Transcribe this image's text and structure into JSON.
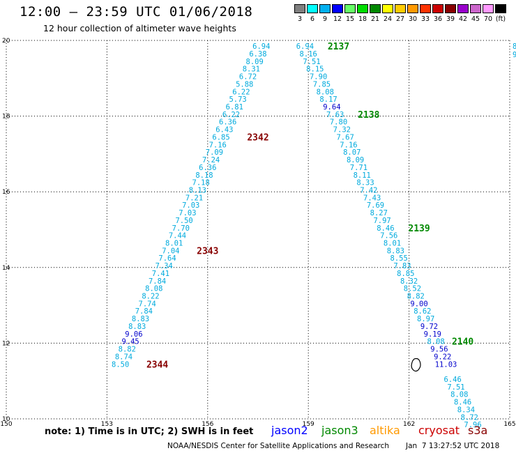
{
  "title": "12:00 – 23:59 UTC 01/06/2018",
  "subtitle": "12 hour collection of altimeter wave heights",
  "colorbar": {
    "unit": "(ft)",
    "swatches": [
      {
        "label": "3",
        "color": "#7f7f7f"
      },
      {
        "label": "6",
        "color": "#00ffff"
      },
      {
        "label": "9",
        "color": "#00b0f0"
      },
      {
        "label": "12",
        "color": "#0000ff"
      },
      {
        "label": "15",
        "color": "#66ff66"
      },
      {
        "label": "18",
        "color": "#00dd00"
      },
      {
        "label": "21",
        "color": "#008800"
      },
      {
        "label": "24",
        "color": "#ffff00"
      },
      {
        "label": "27",
        "color": "#ffcc00"
      },
      {
        "label": "30",
        "color": "#ff9900"
      },
      {
        "label": "33",
        "color": "#ff3300"
      },
      {
        "label": "36",
        "color": "#cc0000"
      },
      {
        "label": "39",
        "color": "#880000"
      },
      {
        "label": "42",
        "color": "#9900cc"
      },
      {
        "label": "45",
        "color": "#cc66cc"
      },
      {
        "label": "70",
        "color": "#ff99ff"
      },
      {
        "label": "",
        "color": "#000000"
      }
    ]
  },
  "map": {
    "lon_range": [
      150,
      165
    ],
    "lat_range": [
      10,
      20
    ],
    "x_ticks": [
      {
        "value": 150,
        "label": "150"
      },
      {
        "value": 153,
        "label": "153"
      },
      {
        "value": 156,
        "label": "156"
      },
      {
        "value": 159,
        "label": "159"
      },
      {
        "value": 162,
        "label": "162"
      },
      {
        "value": 165,
        "label": "165"
      }
    ],
    "y_ticks": [
      {
        "value": 10,
        "label": "10"
      },
      {
        "value": 12,
        "label": "12"
      },
      {
        "value": 14,
        "label": "14"
      },
      {
        "value": 16,
        "label": "16"
      },
      {
        "value": 18,
        "label": "18"
      },
      {
        "value": 20,
        "label": "20"
      }
    ],
    "grid": "dotted",
    "island": {
      "lon": 162.2,
      "lat": 11.4
    }
  },
  "colors": {
    "swh_low": "#00aadd",
    "swh_high": "#0000cc",
    "jason3_pass": "#008800",
    "cryosat_pass": "#880000"
  },
  "tracks": [
    {
      "satellite": "cryosat",
      "points": [
        {
          "lon": 157.6,
          "lat": 19.85,
          "swh": "6.94"
        },
        {
          "lon": 157.5,
          "lat": 19.65,
          "swh": "6.38"
        },
        {
          "lon": 157.4,
          "lat": 19.45,
          "swh": "8.09"
        },
        {
          "lon": 157.3,
          "lat": 19.25,
          "swh": "8.31"
        },
        {
          "lon": 157.2,
          "lat": 19.05,
          "swh": "6.72"
        },
        {
          "lon": 157.1,
          "lat": 18.85,
          "swh": "5.88"
        },
        {
          "lon": 157.0,
          "lat": 18.65,
          "swh": "6.22"
        },
        {
          "lon": 156.9,
          "lat": 18.45,
          "swh": "5.73"
        },
        {
          "lon": 156.8,
          "lat": 18.25,
          "swh": "6.81"
        },
        {
          "lon": 156.7,
          "lat": 18.05,
          "swh": "6.22"
        },
        {
          "lon": 156.6,
          "lat": 17.85,
          "swh": "6.36"
        },
        {
          "lon": 156.5,
          "lat": 17.65,
          "swh": "6.43"
        },
        {
          "lon": 156.4,
          "lat": 17.45,
          "swh": "6.85"
        },
        {
          "lon": 156.3,
          "lat": 17.25,
          "swh": "7.16"
        },
        {
          "lon": 156.2,
          "lat": 17.05,
          "swh": "7.09"
        },
        {
          "lon": 156.1,
          "lat": 16.85,
          "swh": "7.24"
        },
        {
          "lon": 156.0,
          "lat": 16.65,
          "swh": "6.36"
        },
        {
          "lon": 155.9,
          "lat": 16.45,
          "swh": "8.18"
        },
        {
          "lon": 155.8,
          "lat": 16.25,
          "swh": "7.18"
        },
        {
          "lon": 155.7,
          "lat": 16.05,
          "swh": "8.13"
        },
        {
          "lon": 155.6,
          "lat": 15.85,
          "swh": "7.21"
        },
        {
          "lon": 155.5,
          "lat": 15.65,
          "swh": "7.03"
        },
        {
          "lon": 155.4,
          "lat": 15.45,
          "swh": "7.03"
        },
        {
          "lon": 155.3,
          "lat": 15.25,
          "swh": "7.50"
        },
        {
          "lon": 155.2,
          "lat": 15.05,
          "swh": "7.70"
        },
        {
          "lon": 155.1,
          "lat": 14.85,
          "swh": "7.44"
        },
        {
          "lon": 155.0,
          "lat": 14.65,
          "swh": "8.01"
        },
        {
          "lon": 154.9,
          "lat": 14.45,
          "swh": "7.04"
        },
        {
          "lon": 154.8,
          "lat": 14.25,
          "swh": "7.64"
        },
        {
          "lon": 154.7,
          "lat": 14.05,
          "swh": "7.34"
        },
        {
          "lon": 154.6,
          "lat": 13.85,
          "swh": "7.41"
        },
        {
          "lon": 154.5,
          "lat": 13.65,
          "swh": "7.84"
        },
        {
          "lon": 154.4,
          "lat": 13.45,
          "swh": "8.08"
        },
        {
          "lon": 154.3,
          "lat": 13.25,
          "swh": "8.22"
        },
        {
          "lon": 154.2,
          "lat": 13.05,
          "swh": "7.74"
        },
        {
          "lon": 154.1,
          "lat": 12.85,
          "swh": "7.84"
        },
        {
          "lon": 154.0,
          "lat": 12.65,
          "swh": "8.83"
        },
        {
          "lon": 153.9,
          "lat": 12.45,
          "swh": "8.83"
        },
        {
          "lon": 153.8,
          "lat": 12.25,
          "swh": "9.06"
        },
        {
          "lon": 153.7,
          "lat": 12.05,
          "swh": "9.45"
        },
        {
          "lon": 153.6,
          "lat": 11.85,
          "swh": "8.82"
        },
        {
          "lon": 153.5,
          "lat": 11.65,
          "swh": "8.74"
        },
        {
          "lon": 153.4,
          "lat": 11.45,
          "swh": "8.50"
        }
      ]
    },
    {
      "satellite": "jason3",
      "points": [
        {
          "lon": 158.9,
          "lat": 19.85,
          "swh": "6.94"
        },
        {
          "lon": 159.0,
          "lat": 19.65,
          "swh": "8.16"
        },
        {
          "lon": 159.1,
          "lat": 19.45,
          "swh": "7.51"
        },
        {
          "lon": 159.2,
          "lat": 19.25,
          "swh": "8.15"
        },
        {
          "lon": 159.3,
          "lat": 19.05,
          "swh": "7.90"
        },
        {
          "lon": 159.4,
          "lat": 18.85,
          "swh": "7.85"
        },
        {
          "lon": 159.5,
          "lat": 18.65,
          "swh": "8.08"
        },
        {
          "lon": 159.6,
          "lat": 18.45,
          "swh": "8.17"
        },
        {
          "lon": 159.7,
          "lat": 18.25,
          "swh": "9.64"
        },
        {
          "lon": 159.8,
          "lat": 18.05,
          "swh": "7.63"
        },
        {
          "lon": 159.9,
          "lat": 17.85,
          "swh": "7.80"
        },
        {
          "lon": 160.0,
          "lat": 17.65,
          "swh": "7.32"
        },
        {
          "lon": 160.1,
          "lat": 17.45,
          "swh": "7.67"
        },
        {
          "lon": 160.2,
          "lat": 17.25,
          "swh": "7.16"
        },
        {
          "lon": 160.3,
          "lat": 17.05,
          "swh": "8.07"
        },
        {
          "lon": 160.4,
          "lat": 16.85,
          "swh": "8.09"
        },
        {
          "lon": 160.5,
          "lat": 16.65,
          "swh": "7.71"
        },
        {
          "lon": 160.6,
          "lat": 16.45,
          "swh": "8.11"
        },
        {
          "lon": 160.7,
          "lat": 16.25,
          "swh": "8.33"
        },
        {
          "lon": 160.8,
          "lat": 16.05,
          "swh": "7.42"
        },
        {
          "lon": 160.9,
          "lat": 15.85,
          "swh": "7.43"
        },
        {
          "lon": 161.0,
          "lat": 15.65,
          "swh": "7.69"
        },
        {
          "lon": 161.1,
          "lat": 15.45,
          "swh": "8.27"
        },
        {
          "lon": 161.2,
          "lat": 15.25,
          "swh": "7.97"
        },
        {
          "lon": 161.3,
          "lat": 15.05,
          "swh": "8.46"
        },
        {
          "lon": 161.4,
          "lat": 14.85,
          "swh": "7.56"
        },
        {
          "lon": 161.5,
          "lat": 14.65,
          "swh": "8.01"
        },
        {
          "lon": 161.6,
          "lat": 14.45,
          "swh": "8.83"
        },
        {
          "lon": 161.7,
          "lat": 14.25,
          "swh": "8.55"
        },
        {
          "lon": 161.8,
          "lat": 14.05,
          "swh": "7.83"
        },
        {
          "lon": 161.9,
          "lat": 13.85,
          "swh": "8.85"
        },
        {
          "lon": 162.0,
          "lat": 13.65,
          "swh": "8.32"
        },
        {
          "lon": 162.1,
          "lat": 13.45,
          "swh": "8.52"
        },
        {
          "lon": 162.2,
          "lat": 13.25,
          "swh": "8.82"
        },
        {
          "lon": 162.3,
          "lat": 13.05,
          "swh": "9.00"
        },
        {
          "lon": 162.4,
          "lat": 12.85,
          "swh": "8.62"
        },
        {
          "lon": 162.5,
          "lat": 12.65,
          "swh": "8.97"
        },
        {
          "lon": 162.6,
          "lat": 12.45,
          "swh": "9.72"
        },
        {
          "lon": 162.7,
          "lat": 12.25,
          "swh": "9.19"
        },
        {
          "lon": 162.8,
          "lat": 12.05,
          "swh": "8.08"
        },
        {
          "lon": 162.9,
          "lat": 11.85,
          "swh": "9.56"
        },
        {
          "lon": 163.0,
          "lat": 11.65,
          "swh": "9.22"
        },
        {
          "lon": 163.1,
          "lat": 11.45,
          "swh": "11.03"
        },
        {
          "lon": 163.3,
          "lat": 11.05,
          "swh": "6.46"
        },
        {
          "lon": 163.4,
          "lat": 10.85,
          "swh": "7.51"
        },
        {
          "lon": 163.5,
          "lat": 10.65,
          "swh": "8.08"
        },
        {
          "lon": 163.6,
          "lat": 10.45,
          "swh": "8.46"
        },
        {
          "lon": 163.7,
          "lat": 10.25,
          "swh": "8.34"
        },
        {
          "lon": 163.8,
          "lat": 10.05,
          "swh": "8.72"
        },
        {
          "lon": 163.9,
          "lat": 9.85,
          "swh": "7.96"
        }
      ]
    }
  ],
  "pass_labels": [
    {
      "text": "2137",
      "satellite": "jason3",
      "lon": 159.9,
      "lat": 19.85
    },
    {
      "text": "2138",
      "satellite": "jason3",
      "lon": 160.8,
      "lat": 18.05
    },
    {
      "text": "2139",
      "satellite": "jason3",
      "lon": 162.3,
      "lat": 15.05
    },
    {
      "text": "2140",
      "satellite": "jason3",
      "lon": 163.6,
      "lat": 12.05
    },
    {
      "text": "2342",
      "satellite": "cryosat",
      "lon": 157.5,
      "lat": 17.45
    },
    {
      "text": "2343",
      "satellite": "cryosat",
      "lon": 156.0,
      "lat": 14.45
    },
    {
      "text": "2344",
      "satellite": "cryosat",
      "lon": 154.5,
      "lat": 11.45
    }
  ],
  "edge_values": [
    "8",
    "9"
  ],
  "footer": {
    "note": "note: 1) Time is in UTC; 2) SWH is in feet",
    "satellites": [
      {
        "name": "jason2",
        "color": "#0000ff"
      },
      {
        "name": "jason3",
        "color": "#008800"
      },
      {
        "name": "altika",
        "color": "#ff9900"
      },
      {
        "name": "cryosat",
        "color": "#cc0000"
      },
      {
        "name": "s3a",
        "color": "#880000"
      }
    ],
    "credit": "NOAA/NESDIS Center for Satellite Applications and Research",
    "timestamp": "Jan  7 13:27:52 UTC 2018"
  }
}
